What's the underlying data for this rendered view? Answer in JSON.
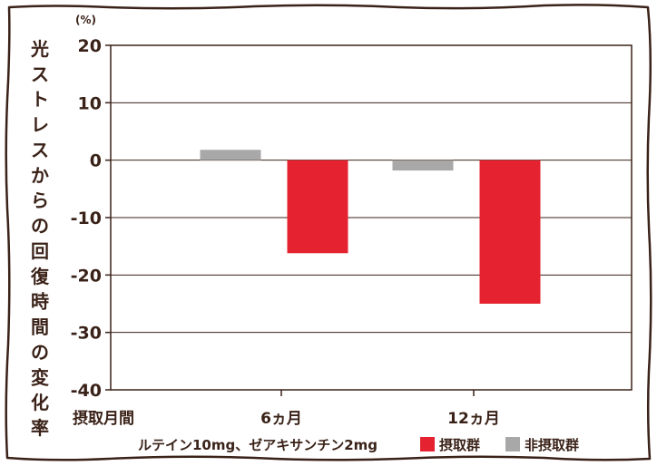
{
  "chart_data": {
    "type": "bar",
    "ylabel": "光ストレスからの回復時間の変化率",
    "yunit": "(%)",
    "ylim": [
      -40,
      20
    ],
    "yticks": [
      20,
      10,
      0,
      -10,
      -20,
      -30,
      -40
    ],
    "categories": [
      "摂取月間",
      "6ヵ月",
      "12ヵ月"
    ],
    "series": [
      {
        "name": "非摂取群",
        "color": "#a8a8a8",
        "values": [
          null,
          1.8,
          -1.8
        ]
      },
      {
        "name": "摂取群",
        "color": "#e52330",
        "values": [
          null,
          -16.2,
          -25.0
        ]
      }
    ],
    "note": "ルテイン10mg、ゼアキサンチン2mg",
    "legend_order": [
      "摂取群",
      "非摂取群"
    ],
    "grid": true,
    "legend_placement": "bottom"
  },
  "colors": {
    "frame": "#3a2218",
    "grid": "#3a2218"
  }
}
